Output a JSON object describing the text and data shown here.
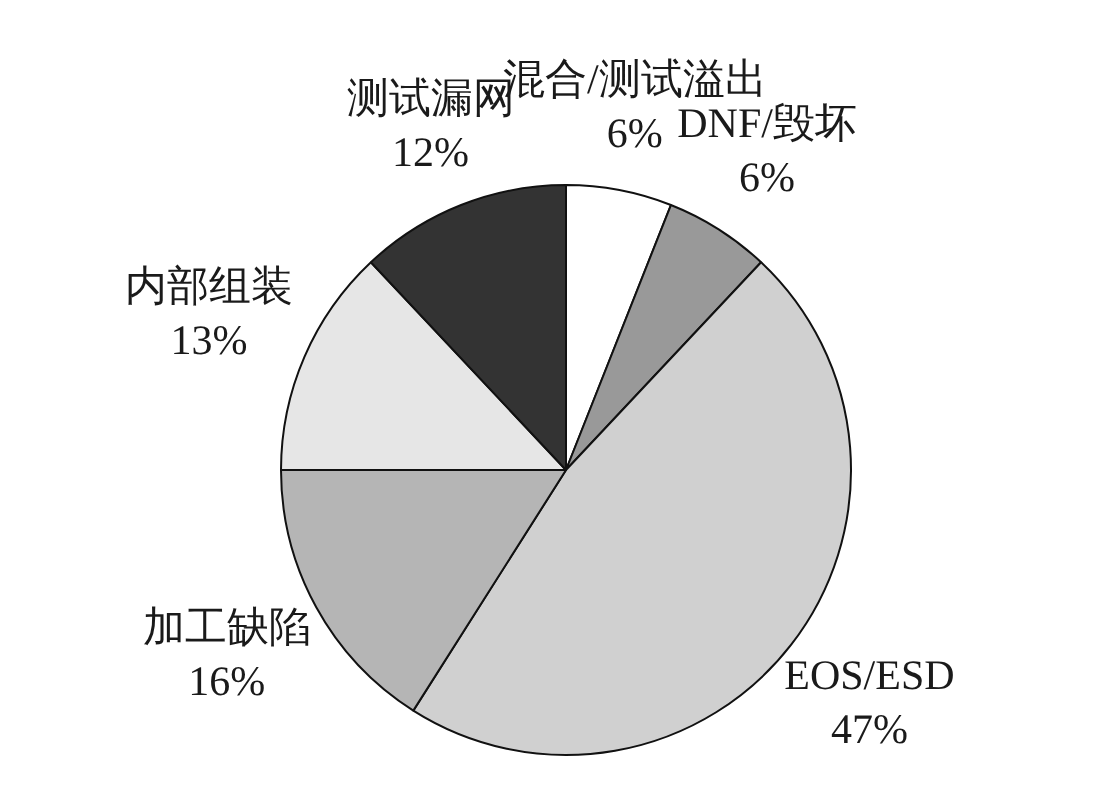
{
  "chart_data": {
    "type": "pie",
    "categories": [
      "混合/测试溢出",
      "DNF/毁坏",
      "EOS/ESD",
      "加工缺陷",
      "内部组装",
      "测试漏网"
    ],
    "values": [
      6,
      6,
      47,
      16,
      13,
      12
    ],
    "value_labels": [
      "6%",
      "6%",
      "47%",
      "16%",
      "13%",
      "12%"
    ],
    "colors": [
      "#ffffff",
      "#999999",
      "#d0d0d0",
      "#b5b5b5",
      "#e6e6e6",
      "#333333"
    ]
  }
}
